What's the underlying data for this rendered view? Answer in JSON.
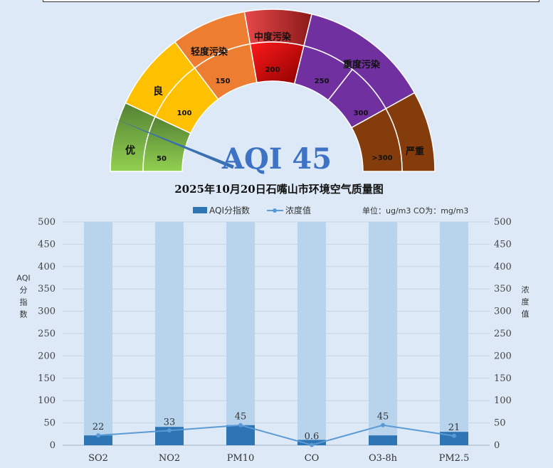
{
  "gauge": {
    "aqi_label": "AQI 45",
    "aqi_value": 45,
    "outer_labels": [
      "优",
      "良",
      "轻度污染",
      "中度污染",
      "重度污染",
      "严重"
    ],
    "inner_labels": [
      "50",
      "100",
      "150",
      "200",
      "250",
      "300",
      ">300"
    ],
    "colors": {
      "good": "#7cc243",
      "moderate": "#ffc000",
      "light": "#ed7d31",
      "medium": "#e00000",
      "heavy": "#7030a0",
      "severe": "#843c0c",
      "needle": "#3a6fb0"
    }
  },
  "chart_title": "2025年10月20日石嘴山市环境空气质量图",
  "legend": {
    "bar_label": "AQI分指数",
    "line_label": "浓度值",
    "unit_note": "单位：ug/m3   CO为：mg/m3"
  },
  "left_axis_title": "AQI分指数",
  "right_axis_title": "浓度值",
  "chart_data": {
    "type": "bar",
    "categories": [
      "SO2",
      "NO2",
      "PM10",
      "CO",
      "O3-8h",
      "PM2.5"
    ],
    "series": [
      {
        "name": "AQI分指数",
        "type": "bar",
        "values": [
          22,
          41,
          45,
          12,
          22,
          30
        ]
      },
      {
        "name": "浓度值",
        "type": "line",
        "values": [
          22,
          33,
          45,
          0.6,
          45,
          21
        ]
      }
    ],
    "background_bar_values": [
      500,
      500,
      500,
      500,
      500,
      500
    ],
    "data_labels": [
      "22",
      "33",
      "45",
      "0.6",
      "45",
      "21"
    ],
    "y_ticks": [
      "0",
      "50",
      "100",
      "150",
      "200",
      "250",
      "300",
      "350",
      "400",
      "450",
      "500"
    ],
    "ylim": [
      0,
      500
    ],
    "y2lim": [
      0,
      500
    ],
    "legend_position": "top",
    "colors": {
      "bar": "#2e75b6",
      "background_bar": "#b8d4ec",
      "line": "#5b9bd5"
    }
  }
}
